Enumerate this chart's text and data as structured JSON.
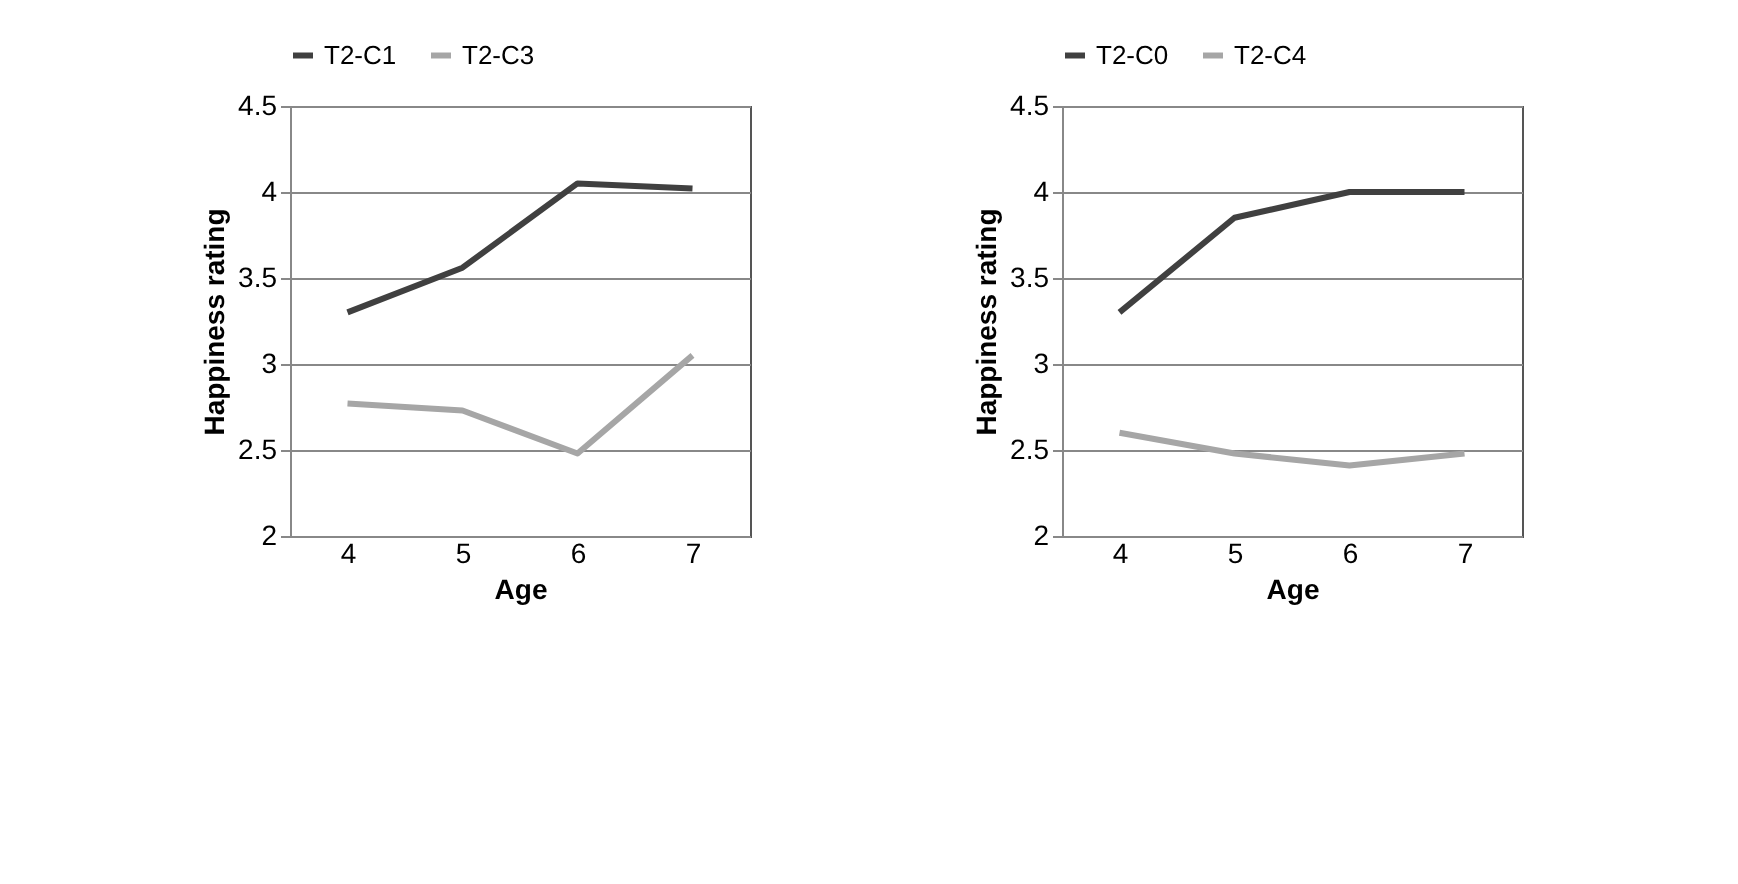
{
  "chart_data": [
    {
      "type": "line",
      "categories": [
        "4",
        "5",
        "6",
        "7"
      ],
      "xlabel": "Age",
      "ylabel": "Happiness rating",
      "ylim": [
        2,
        4.5
      ],
      "yticks": [
        2,
        2.5,
        3,
        3.5,
        4,
        4.5
      ],
      "grid": "y",
      "legend": "top",
      "line_style": "solid",
      "marker": "none",
      "series": [
        {
          "name": "T2-C1",
          "color": "#404040",
          "values": [
            3.3,
            3.56,
            4.05,
            4.02
          ]
        },
        {
          "name": "T2-C3",
          "color": "#a6a6a6",
          "values": [
            2.77,
            2.73,
            2.48,
            3.05
          ]
        }
      ]
    },
    {
      "type": "line",
      "categories": [
        "4",
        "5",
        "6",
        "7"
      ],
      "xlabel": "Age",
      "ylabel": "Happiness rating",
      "ylim": [
        2,
        4.5
      ],
      "yticks": [
        2,
        2.5,
        3,
        3.5,
        4,
        4.5
      ],
      "grid": "y",
      "legend": "top",
      "line_style": "solid",
      "marker": "none",
      "series": [
        {
          "name": "T2-C0",
          "color": "#404040",
          "values": [
            3.3,
            3.85,
            4.0,
            4.0
          ]
        },
        {
          "name": "T2-C4",
          "color": "#a6a6a6",
          "values": [
            2.6,
            2.48,
            2.41,
            2.48
          ]
        }
      ]
    }
  ]
}
